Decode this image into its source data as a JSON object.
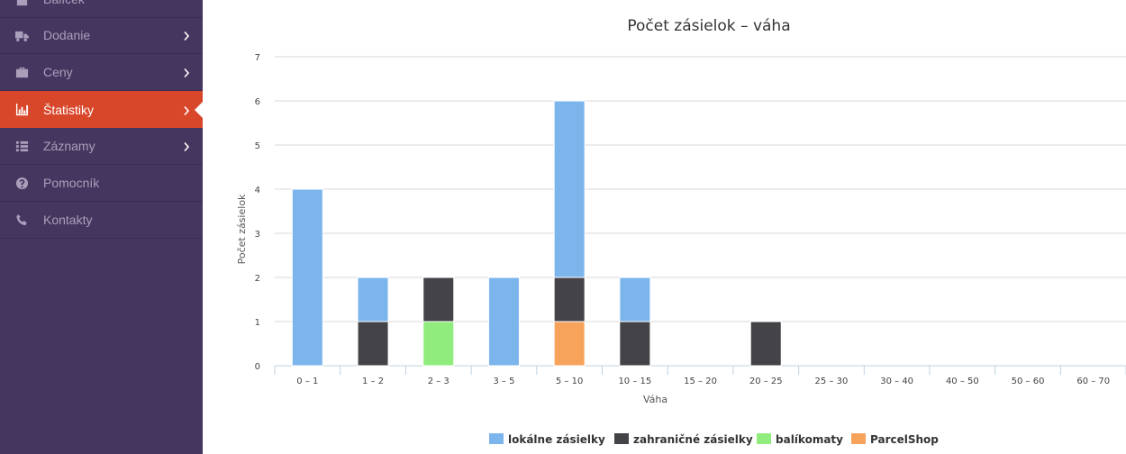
{
  "sidebar": {
    "items": [
      {
        "label": "Balíček",
        "icon": "package-icon",
        "has_chevron": false,
        "active": false
      },
      {
        "label": "Dodanie",
        "icon": "truck-icon",
        "has_chevron": true,
        "active": false
      },
      {
        "label": "Ceny",
        "icon": "briefcase-icon",
        "has_chevron": true,
        "active": false
      },
      {
        "label": "Štatistiky",
        "icon": "bar-chart-icon",
        "has_chevron": true,
        "active": true
      },
      {
        "label": "Záznamy",
        "icon": "list-icon",
        "has_chevron": true,
        "active": false
      },
      {
        "label": "Pomocník",
        "icon": "question-circle-icon",
        "has_chevron": false,
        "active": false
      },
      {
        "label": "Kontakty",
        "icon": "phone-icon",
        "has_chevron": false,
        "active": false
      }
    ],
    "colors": {
      "background": "#45365f",
      "active": "#d9472b",
      "text": "#a99fbb"
    }
  },
  "chart_data": {
    "type": "bar",
    "stacked": true,
    "title": "Počet zásielok – váha",
    "xlabel": "Váha",
    "ylabel": "Počet zásielok",
    "ylim": [
      0,
      7
    ],
    "yticks": [
      0,
      1,
      2,
      3,
      4,
      5,
      6,
      7
    ],
    "grid": true,
    "legend_position": "bottom",
    "categories": [
      "0 – 1",
      "1 – 2",
      "2 – 3",
      "3 – 5",
      "5 – 10",
      "10 – 15",
      "15 – 20",
      "20 – 25",
      "25 – 30",
      "30 – 40",
      "40 – 50",
      "50 – 60",
      "60 – 70"
    ],
    "series": [
      {
        "name": "lokálne zásielky",
        "color": "#7cb5ec",
        "values": [
          4,
          1,
          0,
          2,
          4,
          1,
          0,
          0,
          0,
          0,
          0,
          0,
          0
        ]
      },
      {
        "name": "zahraničné zásielky",
        "color": "#434348",
        "values": [
          0,
          1,
          1,
          0,
          1,
          1,
          0,
          1,
          0,
          0,
          0,
          0,
          0
        ]
      },
      {
        "name": "balíkomaty",
        "color": "#90ed7d",
        "values": [
          0,
          0,
          1,
          0,
          0,
          0,
          0,
          0,
          0,
          0,
          0,
          0,
          0
        ]
      },
      {
        "name": "ParcelShop",
        "color": "#f7a35c",
        "values": [
          0,
          0,
          0,
          0,
          1,
          0,
          0,
          0,
          0,
          0,
          0,
          0,
          0
        ]
      }
    ]
  }
}
